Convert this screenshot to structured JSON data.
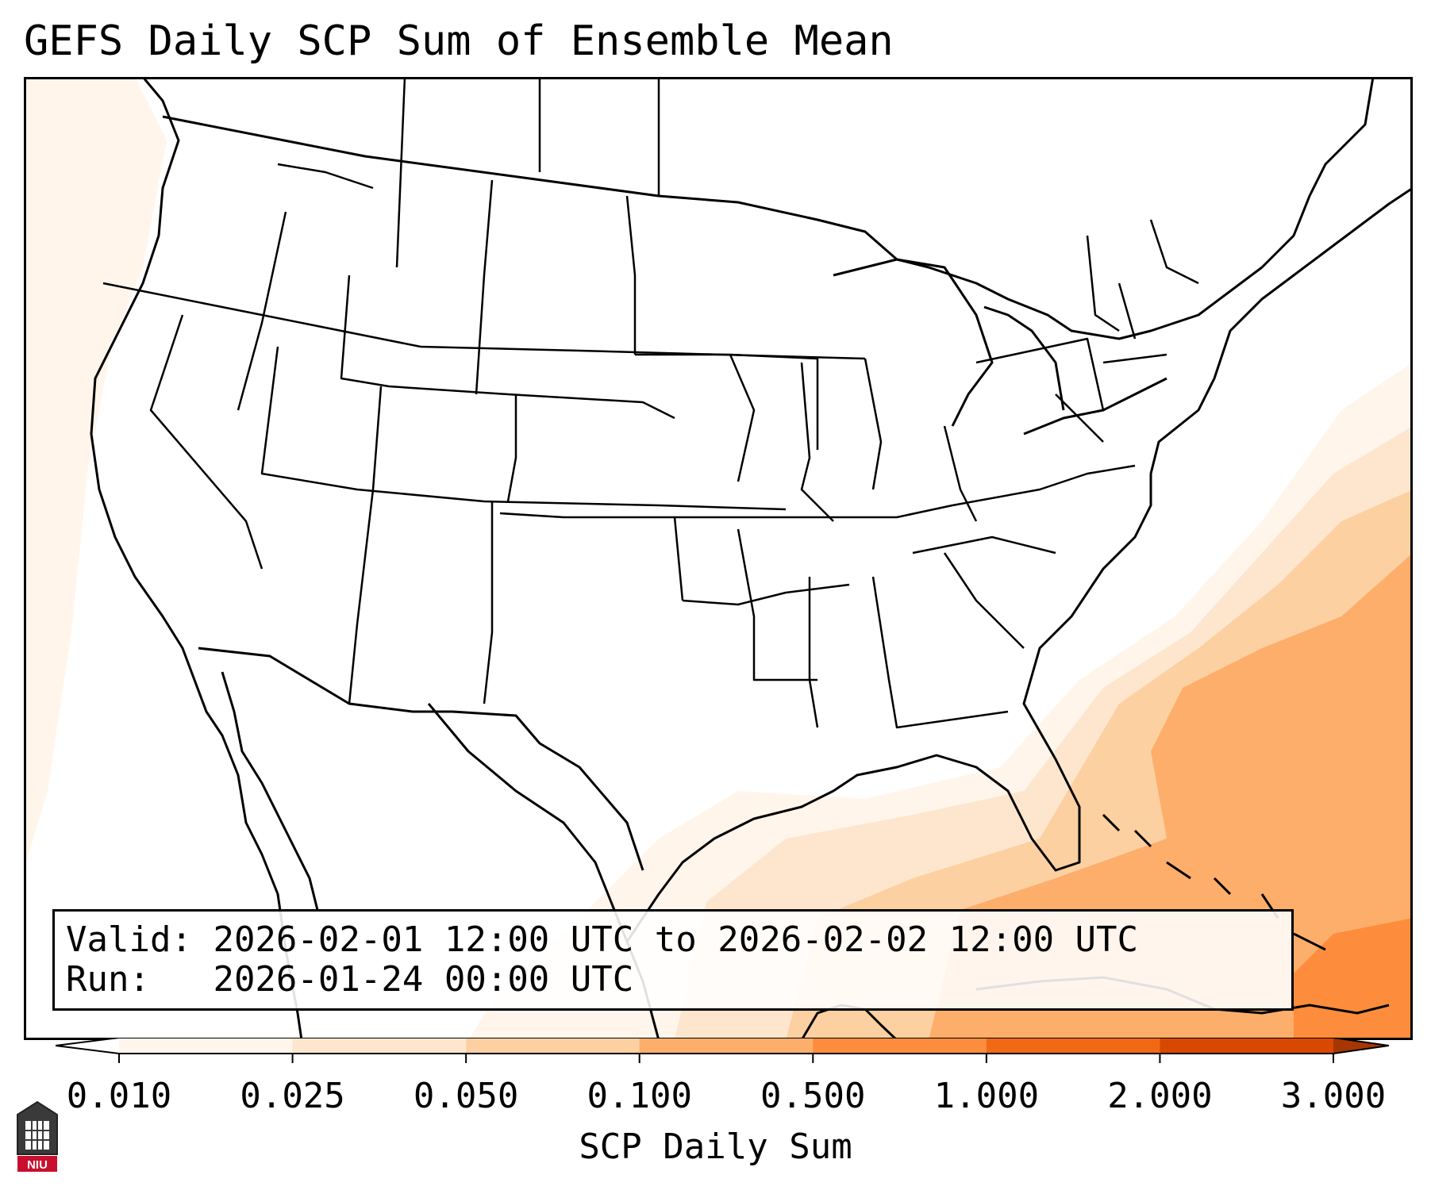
{
  "title": "GEFS Daily SCP Sum of Ensemble Mean",
  "info": {
    "valid_label": "Valid:",
    "valid_value": "2026-02-01 12:00 UTC to 2026-02-02 12:00 UTC",
    "run_label": "Run:",
    "run_value": "2026-01-24 00:00 UTC"
  },
  "colorbar": {
    "label": "SCP Daily Sum",
    "ticks": [
      "0.010",
      "0.025",
      "0.050",
      "0.100",
      "0.500",
      "1.000",
      "2.000",
      "3.000"
    ],
    "colors": [
      "#fff5eb",
      "#fee6ce",
      "#fdd0a2",
      "#fdae6b",
      "#fd8d3c",
      "#f16913",
      "#d94801",
      "#a63603"
    ]
  },
  "logo": {
    "text": "NIU",
    "color": "#c8102e"
  }
}
